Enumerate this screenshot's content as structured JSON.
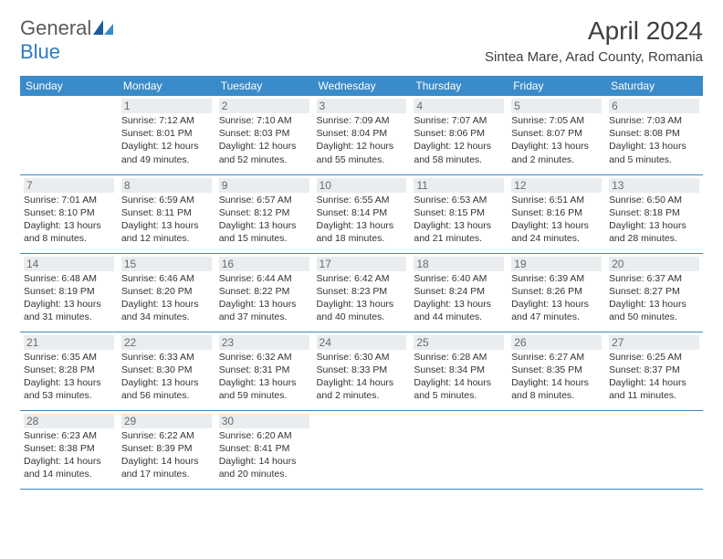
{
  "logo": {
    "general": "General",
    "blue": "Blue"
  },
  "header": {
    "month_title": "April 2024",
    "location": "Sintea Mare, Arad County, Romania"
  },
  "dayHeaders": [
    "Sunday",
    "Monday",
    "Tuesday",
    "Wednesday",
    "Thursday",
    "Friday",
    "Saturday"
  ],
  "colors": {
    "header_bg": "#3a8bc9",
    "header_text": "#ffffff",
    "daynum_bg": "#e9edef",
    "daynum_text": "#6a6a6a",
    "border": "#3a8bc9",
    "logo_gray": "#5a5a5a",
    "logo_blue": "#2f7cc0"
  },
  "weeks": [
    [
      {
        "n": "",
        "sr": "",
        "ss": "",
        "dl1": "",
        "dl2": "",
        "empty": true
      },
      {
        "n": "1",
        "sr": "Sunrise: 7:12 AM",
        "ss": "Sunset: 8:01 PM",
        "dl1": "Daylight: 12 hours",
        "dl2": "and 49 minutes."
      },
      {
        "n": "2",
        "sr": "Sunrise: 7:10 AM",
        "ss": "Sunset: 8:03 PM",
        "dl1": "Daylight: 12 hours",
        "dl2": "and 52 minutes."
      },
      {
        "n": "3",
        "sr": "Sunrise: 7:09 AM",
        "ss": "Sunset: 8:04 PM",
        "dl1": "Daylight: 12 hours",
        "dl2": "and 55 minutes."
      },
      {
        "n": "4",
        "sr": "Sunrise: 7:07 AM",
        "ss": "Sunset: 8:06 PM",
        "dl1": "Daylight: 12 hours",
        "dl2": "and 58 minutes."
      },
      {
        "n": "5",
        "sr": "Sunrise: 7:05 AM",
        "ss": "Sunset: 8:07 PM",
        "dl1": "Daylight: 13 hours",
        "dl2": "and 2 minutes."
      },
      {
        "n": "6",
        "sr": "Sunrise: 7:03 AM",
        "ss": "Sunset: 8:08 PM",
        "dl1": "Daylight: 13 hours",
        "dl2": "and 5 minutes."
      }
    ],
    [
      {
        "n": "7",
        "sr": "Sunrise: 7:01 AM",
        "ss": "Sunset: 8:10 PM",
        "dl1": "Daylight: 13 hours",
        "dl2": "and 8 minutes."
      },
      {
        "n": "8",
        "sr": "Sunrise: 6:59 AM",
        "ss": "Sunset: 8:11 PM",
        "dl1": "Daylight: 13 hours",
        "dl2": "and 12 minutes."
      },
      {
        "n": "9",
        "sr": "Sunrise: 6:57 AM",
        "ss": "Sunset: 8:12 PM",
        "dl1": "Daylight: 13 hours",
        "dl2": "and 15 minutes."
      },
      {
        "n": "10",
        "sr": "Sunrise: 6:55 AM",
        "ss": "Sunset: 8:14 PM",
        "dl1": "Daylight: 13 hours",
        "dl2": "and 18 minutes."
      },
      {
        "n": "11",
        "sr": "Sunrise: 6:53 AM",
        "ss": "Sunset: 8:15 PM",
        "dl1": "Daylight: 13 hours",
        "dl2": "and 21 minutes."
      },
      {
        "n": "12",
        "sr": "Sunrise: 6:51 AM",
        "ss": "Sunset: 8:16 PM",
        "dl1": "Daylight: 13 hours",
        "dl2": "and 24 minutes."
      },
      {
        "n": "13",
        "sr": "Sunrise: 6:50 AM",
        "ss": "Sunset: 8:18 PM",
        "dl1": "Daylight: 13 hours",
        "dl2": "and 28 minutes."
      }
    ],
    [
      {
        "n": "14",
        "sr": "Sunrise: 6:48 AM",
        "ss": "Sunset: 8:19 PM",
        "dl1": "Daylight: 13 hours",
        "dl2": "and 31 minutes."
      },
      {
        "n": "15",
        "sr": "Sunrise: 6:46 AM",
        "ss": "Sunset: 8:20 PM",
        "dl1": "Daylight: 13 hours",
        "dl2": "and 34 minutes."
      },
      {
        "n": "16",
        "sr": "Sunrise: 6:44 AM",
        "ss": "Sunset: 8:22 PM",
        "dl1": "Daylight: 13 hours",
        "dl2": "and 37 minutes."
      },
      {
        "n": "17",
        "sr": "Sunrise: 6:42 AM",
        "ss": "Sunset: 8:23 PM",
        "dl1": "Daylight: 13 hours",
        "dl2": "and 40 minutes."
      },
      {
        "n": "18",
        "sr": "Sunrise: 6:40 AM",
        "ss": "Sunset: 8:24 PM",
        "dl1": "Daylight: 13 hours",
        "dl2": "and 44 minutes."
      },
      {
        "n": "19",
        "sr": "Sunrise: 6:39 AM",
        "ss": "Sunset: 8:26 PM",
        "dl1": "Daylight: 13 hours",
        "dl2": "and 47 minutes."
      },
      {
        "n": "20",
        "sr": "Sunrise: 6:37 AM",
        "ss": "Sunset: 8:27 PM",
        "dl1": "Daylight: 13 hours",
        "dl2": "and 50 minutes."
      }
    ],
    [
      {
        "n": "21",
        "sr": "Sunrise: 6:35 AM",
        "ss": "Sunset: 8:28 PM",
        "dl1": "Daylight: 13 hours",
        "dl2": "and 53 minutes."
      },
      {
        "n": "22",
        "sr": "Sunrise: 6:33 AM",
        "ss": "Sunset: 8:30 PM",
        "dl1": "Daylight: 13 hours",
        "dl2": "and 56 minutes."
      },
      {
        "n": "23",
        "sr": "Sunrise: 6:32 AM",
        "ss": "Sunset: 8:31 PM",
        "dl1": "Daylight: 13 hours",
        "dl2": "and 59 minutes."
      },
      {
        "n": "24",
        "sr": "Sunrise: 6:30 AM",
        "ss": "Sunset: 8:33 PM",
        "dl1": "Daylight: 14 hours",
        "dl2": "and 2 minutes."
      },
      {
        "n": "25",
        "sr": "Sunrise: 6:28 AM",
        "ss": "Sunset: 8:34 PM",
        "dl1": "Daylight: 14 hours",
        "dl2": "and 5 minutes."
      },
      {
        "n": "26",
        "sr": "Sunrise: 6:27 AM",
        "ss": "Sunset: 8:35 PM",
        "dl1": "Daylight: 14 hours",
        "dl2": "and 8 minutes."
      },
      {
        "n": "27",
        "sr": "Sunrise: 6:25 AM",
        "ss": "Sunset: 8:37 PM",
        "dl1": "Daylight: 14 hours",
        "dl2": "and 11 minutes."
      }
    ],
    [
      {
        "n": "28",
        "sr": "Sunrise: 6:23 AM",
        "ss": "Sunset: 8:38 PM",
        "dl1": "Daylight: 14 hours",
        "dl2": "and 14 minutes."
      },
      {
        "n": "29",
        "sr": "Sunrise: 6:22 AM",
        "ss": "Sunset: 8:39 PM",
        "dl1": "Daylight: 14 hours",
        "dl2": "and 17 minutes."
      },
      {
        "n": "30",
        "sr": "Sunrise: 6:20 AM",
        "ss": "Sunset: 8:41 PM",
        "dl1": "Daylight: 14 hours",
        "dl2": "and 20 minutes."
      },
      {
        "n": "",
        "sr": "",
        "ss": "",
        "dl1": "",
        "dl2": "",
        "empty": true
      },
      {
        "n": "",
        "sr": "",
        "ss": "",
        "dl1": "",
        "dl2": "",
        "empty": true
      },
      {
        "n": "",
        "sr": "",
        "ss": "",
        "dl1": "",
        "dl2": "",
        "empty": true
      },
      {
        "n": "",
        "sr": "",
        "ss": "",
        "dl1": "",
        "dl2": "",
        "empty": true
      }
    ]
  ]
}
